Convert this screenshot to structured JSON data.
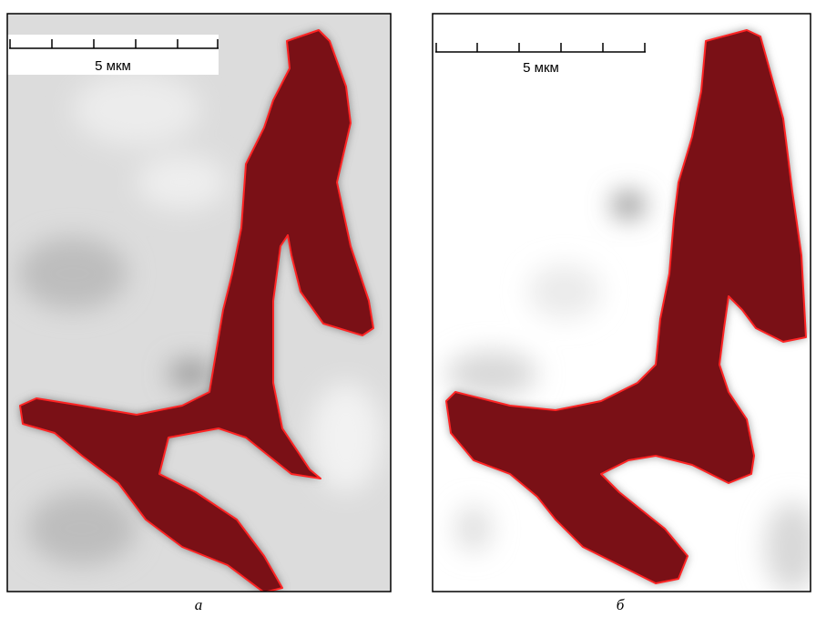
{
  "panels": [
    {
      "scale_label": "5 мкм",
      "caption": "а"
    },
    {
      "scale_label": "5 мкм",
      "caption": "б"
    }
  ]
}
